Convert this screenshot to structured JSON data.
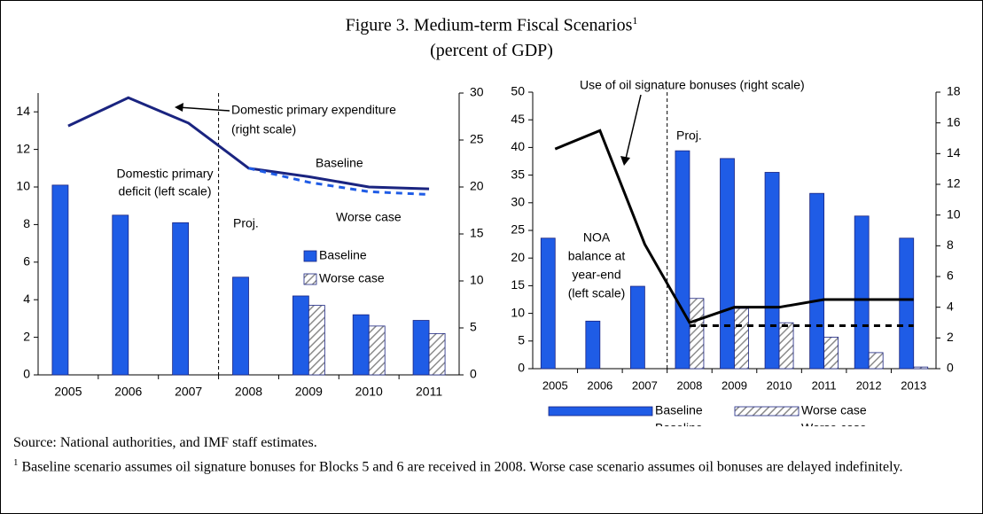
{
  "title": "Figure 3. Medium-term Fiscal Scenarios",
  "title_note": "1",
  "subtitle": "(percent of GDP)",
  "chart_data": [
    {
      "type": "bar-line",
      "categories": [
        "2005",
        "2006",
        "2007",
        "2008",
        "2009",
        "2010",
        "2011"
      ],
      "ylim": [
        0,
        15
      ],
      "yticks": [
        0,
        2,
        4,
        6,
        8,
        10,
        12,
        14
      ],
      "y2lim": [
        0,
        30
      ],
      "y2ticks": [
        0,
        5,
        10,
        15,
        20,
        25,
        30
      ],
      "projection_start_index": 3,
      "projection_label": "Proj.",
      "annotations": [
        {
          "lines": [
            "Domestic primary expenditure",
            "(right scale)"
          ]
        },
        {
          "lines": [
            "Domestic primary",
            "deficit (left scale)"
          ]
        }
      ],
      "series": [
        {
          "name": "Baseline",
          "type": "bar",
          "color": "#1f5ce6",
          "in_legend": true,
          "values": [
            10.1,
            8.5,
            8.1,
            5.2,
            4.2,
            3.2,
            2.9
          ]
        },
        {
          "name": "Worse case",
          "type": "bar",
          "color": "#8c8c8c",
          "pattern": "hatch",
          "in_legend": true,
          "values": [
            null,
            null,
            null,
            null,
            3.7,
            2.6,
            2.2
          ]
        },
        {
          "name": "Baseline",
          "type": "line",
          "color": "#1a2480",
          "axis": "y2",
          "in_legend": false,
          "values": [
            26.5,
            29.5,
            26.8,
            22.0,
            21.1,
            20.0,
            19.8
          ]
        },
        {
          "name": "Worse case",
          "type": "line",
          "color": "#1f5ce6",
          "dash": true,
          "axis": "y2",
          "in_legend": false,
          "values": [
            null,
            null,
            null,
            22.0,
            20.5,
            19.5,
            19.2
          ]
        }
      ]
    },
    {
      "type": "bar-line",
      "categories": [
        "2005",
        "2006",
        "2007",
        "2008",
        "2009",
        "2010",
        "2011",
        "2012",
        "2013"
      ],
      "ylim": [
        0,
        50
      ],
      "yticks": [
        0,
        5,
        10,
        15,
        20,
        25,
        30,
        35,
        40,
        45,
        50
      ],
      "y2lim": [
        0,
        18
      ],
      "y2ticks": [
        0,
        2,
        4,
        6,
        8,
        10,
        12,
        14,
        16,
        18
      ],
      "projection_start_index": 3,
      "projection_label": "Proj.",
      "annotations": [
        {
          "lines": [
            "Use of oil signature bonuses (right scale)"
          ]
        },
        {
          "lines": [
            "NOA",
            "balance at",
            "year-end",
            "(left scale)"
          ]
        }
      ],
      "series": [
        {
          "name": "Baseline",
          "type": "bar",
          "color": "#1f5ce6",
          "in_legend": true,
          "values": [
            23.6,
            8.6,
            14.9,
            39.4,
            38.0,
            35.5,
            31.7,
            27.6,
            23.6
          ]
        },
        {
          "name": "Worse case",
          "type": "bar",
          "color": "#8c8c8c",
          "pattern": "hatch",
          "in_legend": true,
          "values": [
            null,
            null,
            null,
            12.7,
            10.9,
            8.3,
            5.7,
            2.9,
            0.3
          ]
        },
        {
          "name": "Baseline",
          "type": "line",
          "color": "#000000",
          "axis": "y2",
          "in_legend": true,
          "values": [
            14.3,
            15.5,
            8.1,
            3.0,
            4.0,
            4.0,
            4.5,
            4.5,
            4.5
          ]
        },
        {
          "name": "Worse case",
          "type": "line",
          "color": "#000000",
          "dash": true,
          "axis": "y2",
          "in_legend": true,
          "values": [
            null,
            null,
            null,
            2.8,
            2.8,
            2.8,
            2.8,
            2.8,
            2.8
          ]
        }
      ]
    }
  ],
  "source": "Source: National authorities, and IMF staff estimates.",
  "footnote": {
    "marker": "1",
    "text": "Baseline scenario assumes oil signature bonuses for Blocks 5 and 6 are received in 2008. Worse case scenario assumes oil bonuses are delayed indefinitely."
  }
}
